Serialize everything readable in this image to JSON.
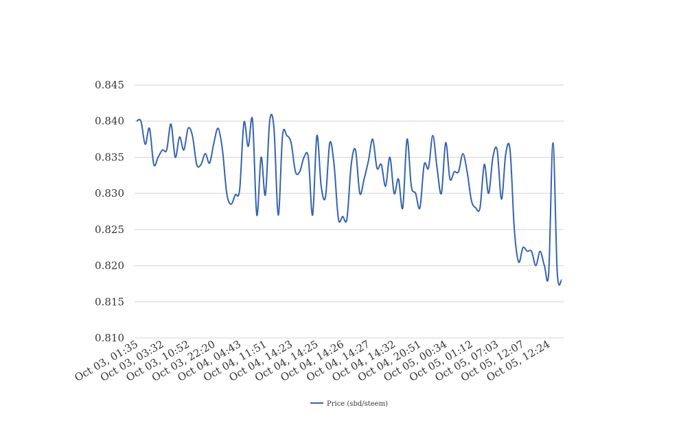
{
  "chart_data": {
    "type": "line",
    "title": "",
    "xlabel": "",
    "ylabel": "",
    "ylim": [
      0.81,
      0.845
    ],
    "yticks": [
      "0.810",
      "0.815",
      "0.820",
      "0.825",
      "0.830",
      "0.835",
      "0.840",
      "0.845"
    ],
    "xtick_labels": [
      "Oct 03, 01:35",
      "Oct 03, 03:32",
      "Oct 03, 10:52",
      "Oct 03, 22:20",
      "Oct 04, 04:43",
      "Oct 04, 11:51",
      "Oct 04, 14:23",
      "Oct 04, 14:25",
      "Oct 04, 14:26",
      "Oct 04, 14:27",
      "Oct 04, 14:32",
      "Oct 04, 20:51",
      "Oct 05, 00:34",
      "Oct 05, 01:12",
      "Oct 05, 07:03",
      "Oct 05, 12:07",
      "Oct 05, 12:24"
    ],
    "grid": true,
    "legend_position": "bottom-center",
    "colors": {
      "line": "#3462b0",
      "grid": "#d3d3d3"
    },
    "series": [
      {
        "name": "Price (sbd/steem)",
        "values": [
          0.84,
          0.84,
          0.8368,
          0.839,
          0.834,
          0.835,
          0.836,
          0.836,
          0.8396,
          0.835,
          0.8378,
          0.836,
          0.839,
          0.838,
          0.834,
          0.834,
          0.8355,
          0.8342,
          0.837,
          0.839,
          0.836,
          0.83,
          0.8285,
          0.8298,
          0.8305,
          0.8398,
          0.8365,
          0.8402,
          0.827,
          0.835,
          0.8298,
          0.84,
          0.839,
          0.827,
          0.838,
          0.838,
          0.837,
          0.833,
          0.833,
          0.835,
          0.835,
          0.827,
          0.838,
          0.831,
          0.8295,
          0.837,
          0.834,
          0.8265,
          0.8268,
          0.8265,
          0.834,
          0.836,
          0.83,
          0.832,
          0.8345,
          0.8375,
          0.8335,
          0.834,
          0.831,
          0.835,
          0.83,
          0.832,
          0.828,
          0.8375,
          0.831,
          0.83,
          0.828,
          0.834,
          0.8335,
          0.838,
          0.8335,
          0.83,
          0.837,
          0.832,
          0.833,
          0.833,
          0.8355,
          0.833,
          0.829,
          0.828,
          0.828,
          0.834,
          0.83,
          0.835,
          0.836,
          0.8292,
          0.8355,
          0.836,
          0.825,
          0.8205,
          0.8225,
          0.822,
          0.822,
          0.82,
          0.822,
          0.82,
          0.819,
          0.837,
          0.819,
          0.818
        ]
      }
    ]
  }
}
